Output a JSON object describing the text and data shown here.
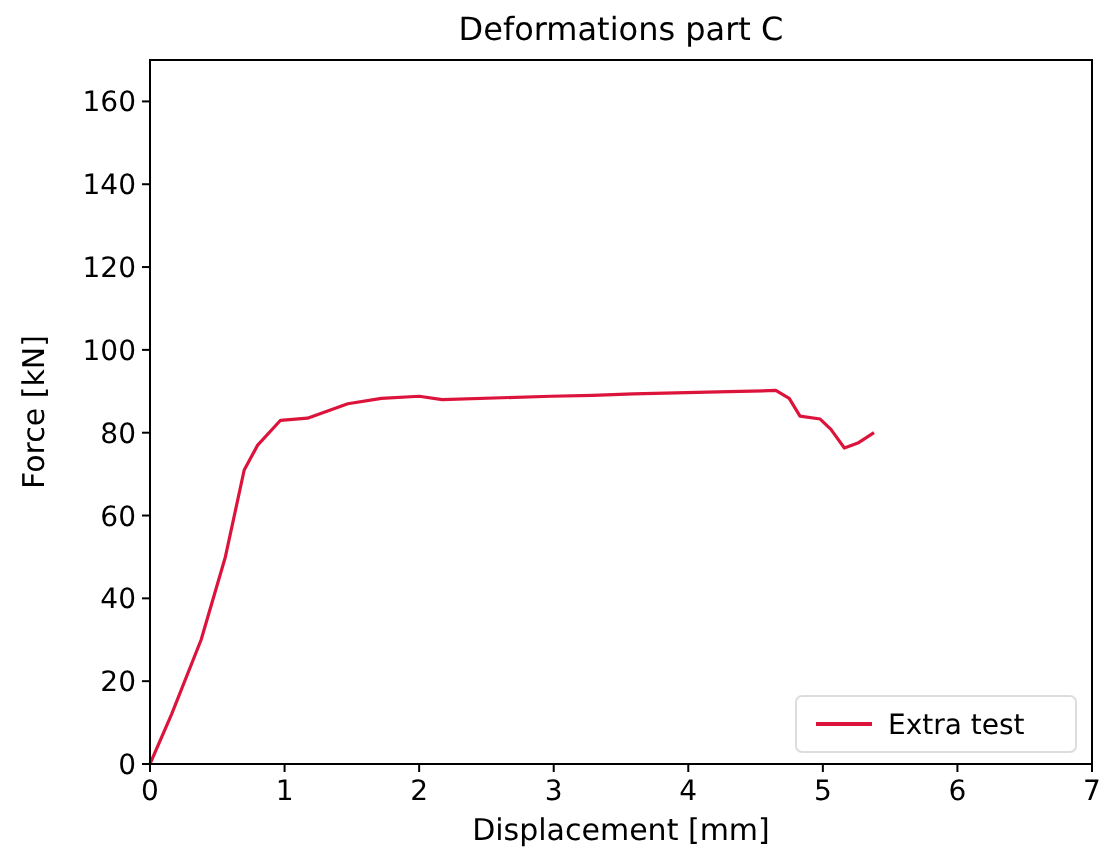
{
  "chart_data": {
    "type": "line",
    "title": "Deformations part C",
    "xlabel": "Displacement [mm]",
    "ylabel": "Force [kN]",
    "xlim": [
      0,
      7
    ],
    "ylim": [
      0,
      170
    ],
    "xticks": [
      0,
      1,
      2,
      3,
      4,
      5,
      6,
      7
    ],
    "yticks": [
      0,
      20,
      40,
      60,
      80,
      100,
      120,
      140,
      160
    ],
    "legend": "bottom right",
    "grid": false,
    "series": [
      {
        "name": "Extra test",
        "color": "#dc143c",
        "x": [
          0,
          0.16,
          0.38,
          0.56,
          0.7,
          0.8,
          0.97,
          1.17,
          1.47,
          1.72,
          2.0,
          2.17,
          2.98,
          3.29,
          3.59,
          4.3,
          4.65,
          4.75,
          4.83,
          4.98,
          5.06,
          5.16,
          5.26,
          5.38
        ],
        "values": [
          0,
          12,
          30,
          50,
          71,
          77,
          83,
          83.5,
          87,
          88.3,
          88.8,
          88,
          88.8,
          89,
          89.4,
          89.9,
          90.2,
          88.3,
          84,
          83.3,
          80.8,
          76.3,
          77.5,
          80
        ]
      }
    ]
  }
}
